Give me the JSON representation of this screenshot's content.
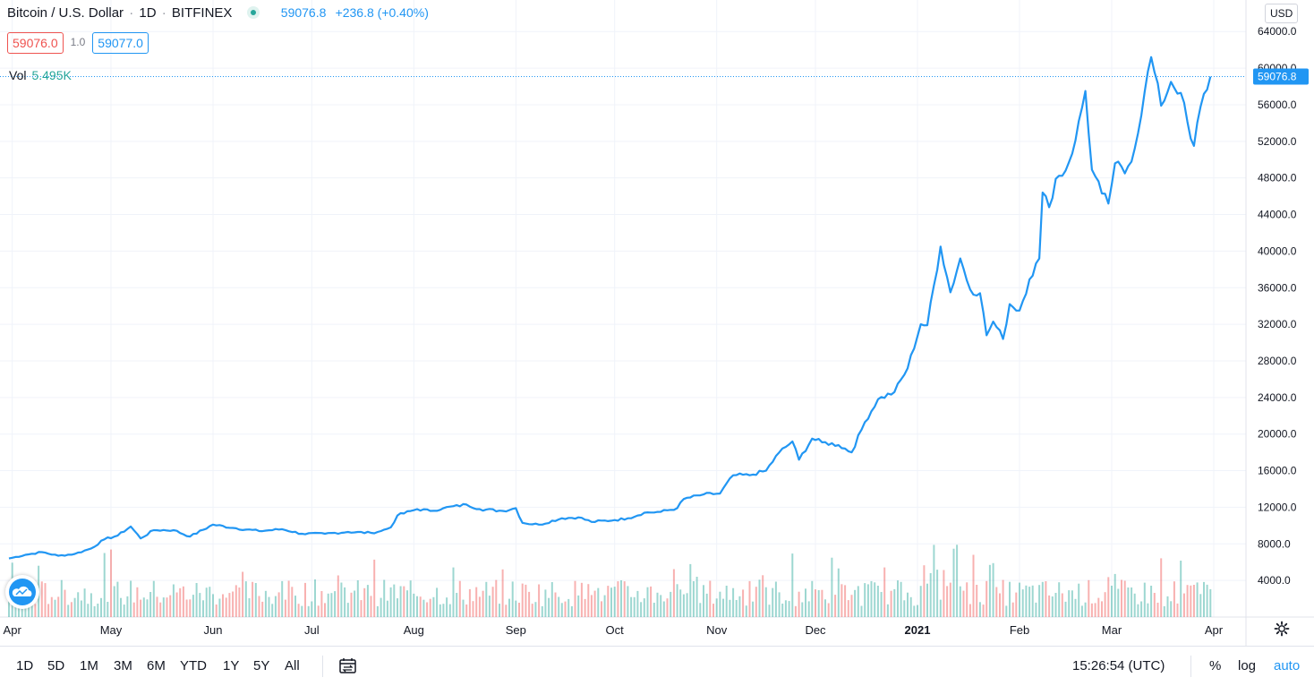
{
  "legend": {
    "symbol": "Bitcoin / U.S. Dollar",
    "interval": "1D",
    "exchange": "BITFINEX",
    "price": "59076.8",
    "change": "+236.8 (+0.40%)"
  },
  "quote": {
    "bid": "59076.0",
    "spread": "1.0",
    "ask": "59077.0"
  },
  "volume": {
    "label": "Vol",
    "value": "5.495K"
  },
  "currency_button": "USD",
  "last_price_label": "59076.8",
  "toolbar": {
    "ranges": [
      "1D",
      "5D",
      "1M",
      "3M",
      "6M",
      "YTD",
      "1Y",
      "5Y",
      "All"
    ],
    "time": "15:26:54 (UTC)",
    "percent": "%",
    "log": "log",
    "auto": "auto"
  },
  "colors": {
    "line": "#2196f3",
    "vol_up": "#26a69a",
    "vol_down": "#ef5350",
    "grid": "#f0f3fa"
  },
  "chart_data": {
    "type": "line",
    "x_ticks": [
      "Apr",
      "May",
      "Jun",
      "Jul",
      "Aug",
      "Sep",
      "Oct",
      "Nov",
      "Dec",
      "2021",
      "Feb",
      "Mar",
      "Apr"
    ],
    "y_ticks": [
      "4000.0",
      "8000.0",
      "12000.0",
      "16000.0",
      "20000.0",
      "24000.0",
      "28000.0",
      "32000.0",
      "36000.0",
      "40000.0",
      "44000.0",
      "48000.0",
      "52000.0",
      "56000.0",
      "60000.0",
      "64000.0"
    ],
    "ylim": [
      0,
      65000
    ],
    "x_range": [
      "2020-03-31",
      "2021-04-01"
    ],
    "series": [
      {
        "values": [
          [
            "2020-03-31",
            6400
          ],
          [
            "2020-04-05",
            6800
          ],
          [
            "2020-04-10",
            7100
          ],
          [
            "2020-04-15",
            6700
          ],
          [
            "2020-04-20",
            6900
          ],
          [
            "2020-04-25",
            7500
          ],
          [
            "2020-04-29",
            8500
          ],
          [
            "2020-05-03",
            8900
          ],
          [
            "2020-05-07",
            9900
          ],
          [
            "2020-05-10",
            8600
          ],
          [
            "2020-05-14",
            9500
          ],
          [
            "2020-05-20",
            9500
          ],
          [
            "2020-05-25",
            8800
          ],
          [
            "2020-06-01",
            10100
          ],
          [
            "2020-06-08",
            9700
          ],
          [
            "2020-06-15",
            9400
          ],
          [
            "2020-06-22",
            9600
          ],
          [
            "2020-06-28",
            9100
          ],
          [
            "2020-07-05",
            9100
          ],
          [
            "2020-07-12",
            9300
          ],
          [
            "2020-07-19",
            9200
          ],
          [
            "2020-07-22",
            9400
          ],
          [
            "2020-07-25",
            9800
          ],
          [
            "2020-07-27",
            11100
          ],
          [
            "2020-08-02",
            11800
          ],
          [
            "2020-08-06",
            11600
          ],
          [
            "2020-08-10",
            11900
          ],
          [
            "2020-08-17",
            12300
          ],
          [
            "2020-08-21",
            11800
          ],
          [
            "2020-08-28",
            11600
          ],
          [
            "2020-09-01",
            11900
          ],
          [
            "2020-09-03",
            10300
          ],
          [
            "2020-09-08",
            10100
          ],
          [
            "2020-09-15",
            10800
          ],
          [
            "2020-09-20",
            10900
          ],
          [
            "2020-09-24",
            10400
          ],
          [
            "2020-10-01",
            10600
          ],
          [
            "2020-10-05",
            10800
          ],
          [
            "2020-10-10",
            11400
          ],
          [
            "2020-10-15",
            11500
          ],
          [
            "2020-10-20",
            11900
          ],
          [
            "2020-10-22",
            12900
          ],
          [
            "2020-10-28",
            13400
          ],
          [
            "2020-11-02",
            13500
          ],
          [
            "2020-11-06",
            15500
          ],
          [
            "2020-11-11",
            15500
          ],
          [
            "2020-11-16",
            16000
          ],
          [
            "2020-11-20",
            18000
          ],
          [
            "2020-11-24",
            19200
          ],
          [
            "2020-11-26",
            17200
          ],
          [
            "2020-11-30",
            19500
          ],
          [
            "2020-12-03",
            19100
          ],
          [
            "2020-12-08",
            18800
          ],
          [
            "2020-12-12",
            18000
          ],
          [
            "2020-12-16",
            21300
          ],
          [
            "2020-12-20",
            23800
          ],
          [
            "2020-12-25",
            24600
          ],
          [
            "2020-12-29",
            27200
          ],
          [
            "2021-01-02",
            32000
          ],
          [
            "2021-01-04",
            31900
          ],
          [
            "2021-01-08",
            40500
          ],
          [
            "2021-01-11",
            35500
          ],
          [
            "2021-01-14",
            39200
          ],
          [
            "2021-01-17",
            35800
          ],
          [
            "2021-01-20",
            35400
          ],
          [
            "2021-01-22",
            30800
          ],
          [
            "2021-01-24",
            32300
          ],
          [
            "2021-01-27",
            30400
          ],
          [
            "2021-01-29",
            34200
          ],
          [
            "2021-02-01",
            33500
          ],
          [
            "2021-02-04",
            36900
          ],
          [
            "2021-02-07",
            39200
          ],
          [
            "2021-02-08",
            46400
          ],
          [
            "2021-02-10",
            44800
          ],
          [
            "2021-02-12",
            47900
          ],
          [
            "2021-02-15",
            48800
          ],
          [
            "2021-02-18",
            52100
          ],
          [
            "2021-02-21",
            57500
          ],
          [
            "2021-02-23",
            48900
          ],
          [
            "2021-02-26",
            46300
          ],
          [
            "2021-02-28",
            45200
          ],
          [
            "2021-03-02",
            49600
          ],
          [
            "2021-03-05",
            48500
          ],
          [
            "2021-03-08",
            51200
          ],
          [
            "2021-03-11",
            57400
          ],
          [
            "2021-03-13",
            61200
          ],
          [
            "2021-03-16",
            55900
          ],
          [
            "2021-03-19",
            58500
          ],
          [
            "2021-03-22",
            57300
          ],
          [
            "2021-03-25",
            52300
          ],
          [
            "2021-03-26",
            51500
          ],
          [
            "2021-03-28",
            55800
          ],
          [
            "2021-03-31",
            59076.8
          ]
        ]
      }
    ]
  }
}
